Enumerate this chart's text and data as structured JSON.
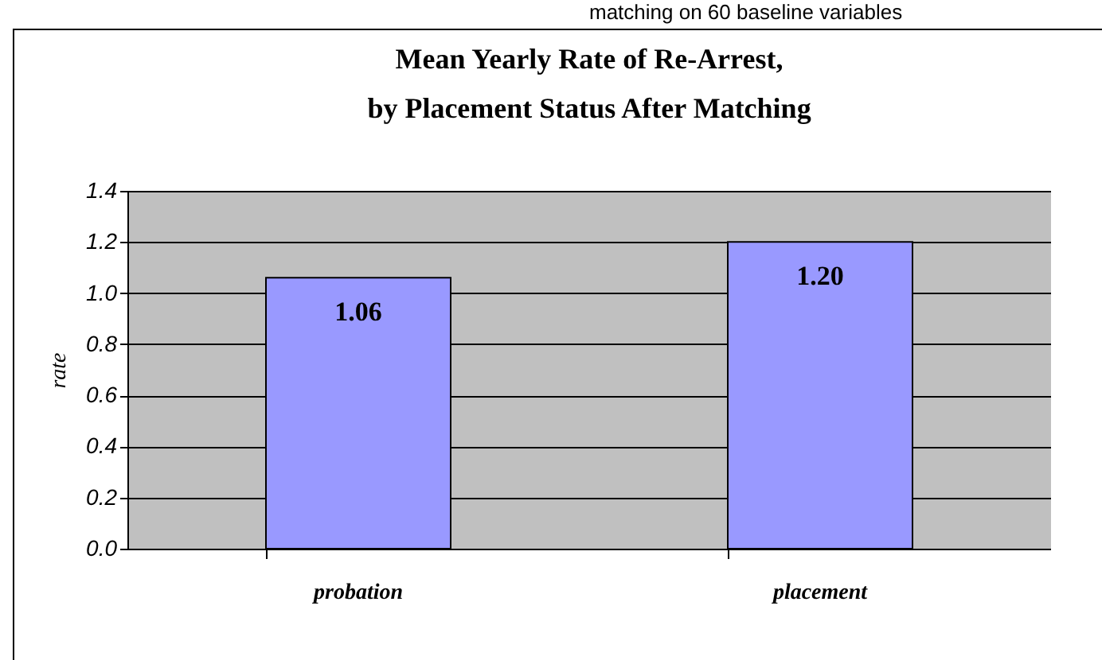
{
  "chart_data": {
    "type": "bar",
    "title": "Mean Yearly Rate of Re-Arrest,\nby Placement Status After Matching",
    "annotations": [
      "matching on 60 baseline variables"
    ],
    "ylabel": "rate",
    "categories": [
      "probation",
      "placement"
    ],
    "values": [
      1.06,
      1.2
    ],
    "color": "#9999ff",
    "ylim": [
      0,
      1.4
    ],
    "yticks": [
      {
        "value": 0,
        "label": "0.0"
      },
      {
        "value": 0.2,
        "label": "0.2"
      },
      {
        "value": 0.4,
        "label": "0.4"
      },
      {
        "value": 0.6,
        "label": "0.6"
      },
      {
        "value": 0.8,
        "label": "0.8"
      },
      {
        "value": 1.0,
        "label": "1.0"
      },
      {
        "value": 1.2,
        "label": "1.2"
      },
      {
        "value": 1.4,
        "label": "1.4"
      }
    ],
    "value_labels": [
      "1.06",
      "1.20"
    ],
    "grid": "y"
  }
}
